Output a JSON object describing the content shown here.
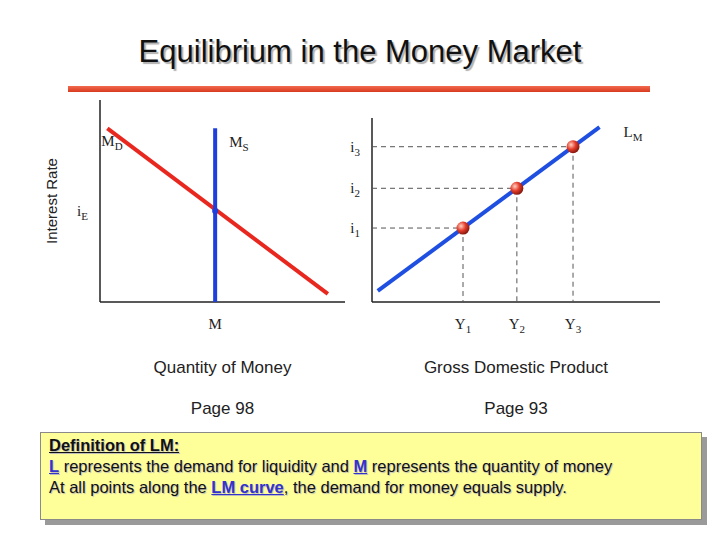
{
  "title": "Equilibrium in the Money Market",
  "chart_data": [
    {
      "type": "line",
      "x_label": "Quantity of Money",
      "y_label": "Interest Rate",
      "note": "Page 98",
      "xlim": [
        0,
        10
      ],
      "ylim": [
        0,
        10
      ],
      "tick_labels": false,
      "grid": false,
      "series": [
        {
          "name": "MD",
          "type": "line",
          "color": "#e8271f",
          "x": [
            0.3,
            9.3
          ],
          "values": [
            8.6,
            0.4
          ]
        },
        {
          "name": "MS",
          "type": "line",
          "color": "#1f3fdc",
          "x": [
            4.7,
            4.7
          ],
          "values": [
            8.6,
            0
          ]
        },
        {
          "type": "scatter",
          "marker": "dot",
          "line_style": "none",
          "color": "#1f3fdc",
          "x": [
            4.7
          ],
          "values": [
            4.5
          ],
          "x_text": [
            "M"
          ],
          "y_text": [
            "iE"
          ]
        }
      ]
    },
    {
      "type": "line",
      "x_label": "Gross Domestic Product",
      "note": "Page 93",
      "xlim": [
        0,
        10
      ],
      "ylim": [
        0,
        10
      ],
      "tick_labels": false,
      "grid": false,
      "series": [
        {
          "name": "LM",
          "type": "line",
          "color": "#1f4fe0",
          "x": [
            0.2,
            7.9
          ],
          "values": [
            0.6,
            9.5
          ]
        },
        {
          "type": "scatter",
          "marker": "sphere",
          "line_style": "dashed",
          "color": "#e33b2a",
          "x": [
            3.16,
            5.03,
            6.98
          ],
          "values": [
            4.02,
            6.18,
            8.44
          ],
          "x_text": [
            "Y1",
            "Y2",
            "Y3"
          ],
          "y_text": [
            "i1",
            "i2",
            "i3"
          ]
        }
      ]
    }
  ],
  "definition": {
    "heading": "Definition of LM:",
    "lines": [
      [
        {
          "text": "L",
          "emphasis": true
        },
        {
          "text": " represents the demand for liquidity and "
        },
        {
          "text": "M",
          "emphasis": true
        },
        {
          "text": " represents the quantity of money"
        }
      ],
      [
        {
          "text": "At all points along the "
        },
        {
          "text": "LM curve",
          "emphasis": true
        },
        {
          "text": ", the demand for money equals supply."
        }
      ]
    ]
  }
}
